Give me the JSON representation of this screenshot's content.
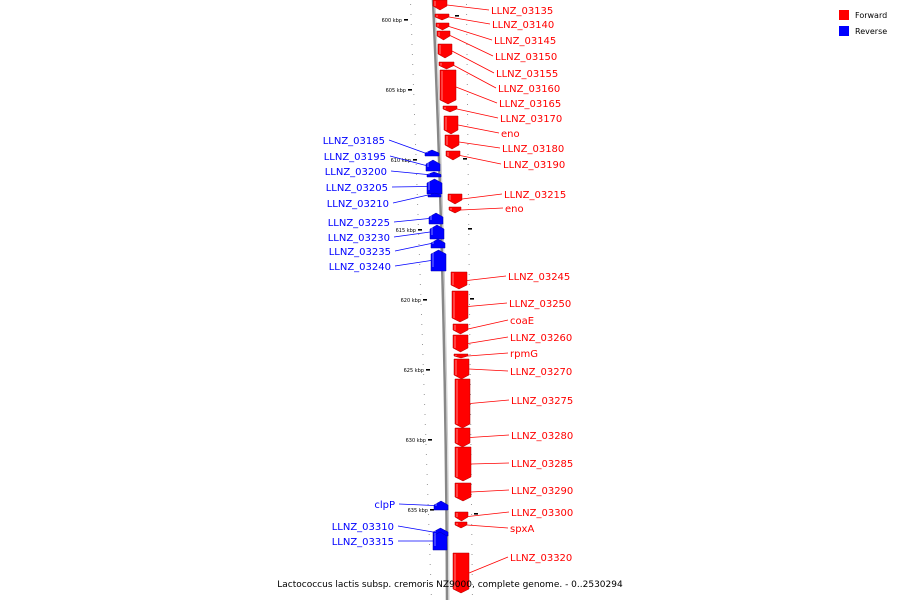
{
  "colors": {
    "forward": "#ff0000",
    "reverse": "#0000ff",
    "backbone": "#888888"
  },
  "legend": [
    {
      "label": "Forward",
      "strand": "forward"
    },
    {
      "label": "Reverse",
      "strand": "reverse"
    }
  ],
  "caption": "Lactococcus lactis subsp. cremoris NZ9000, complete genome. - 0..2530294",
  "ticks": [
    "600 kbp",
    "605 kbp",
    "610 kbp",
    "615 kbp",
    "620 kbp",
    "625 kbp",
    "630 kbp",
    "635 kbp"
  ],
  "forward_genes": [
    "LLNZ_03135",
    "LLNZ_03140",
    "LLNZ_03145",
    "LLNZ_03150",
    "LLNZ_03155",
    "LLNZ_03160",
    "LLNZ_03165",
    "LLNZ_03170",
    "eno",
    "LLNZ_03180",
    "LLNZ_03190",
    "LLNZ_03215",
    "eno",
    "LLNZ_03245",
    "LLNZ_03250",
    "coaE",
    "LLNZ_03260",
    "rpmG",
    "LLNZ_03270",
    "LLNZ_03275",
    "LLNZ_03280",
    "LLNZ_03285",
    "LLNZ_03290",
    "LLNZ_03300",
    "spxA",
    "LLNZ_03320"
  ],
  "reverse_genes": [
    "LLNZ_03185",
    "LLNZ_03195",
    "LLNZ_03200",
    "LLNZ_03205",
    "LLNZ_03210",
    "LLNZ_03225",
    "LLNZ_03230",
    "LLNZ_03235",
    "LLNZ_03240",
    "clpP",
    "LLNZ_03310",
    "LLNZ_03315"
  ]
}
